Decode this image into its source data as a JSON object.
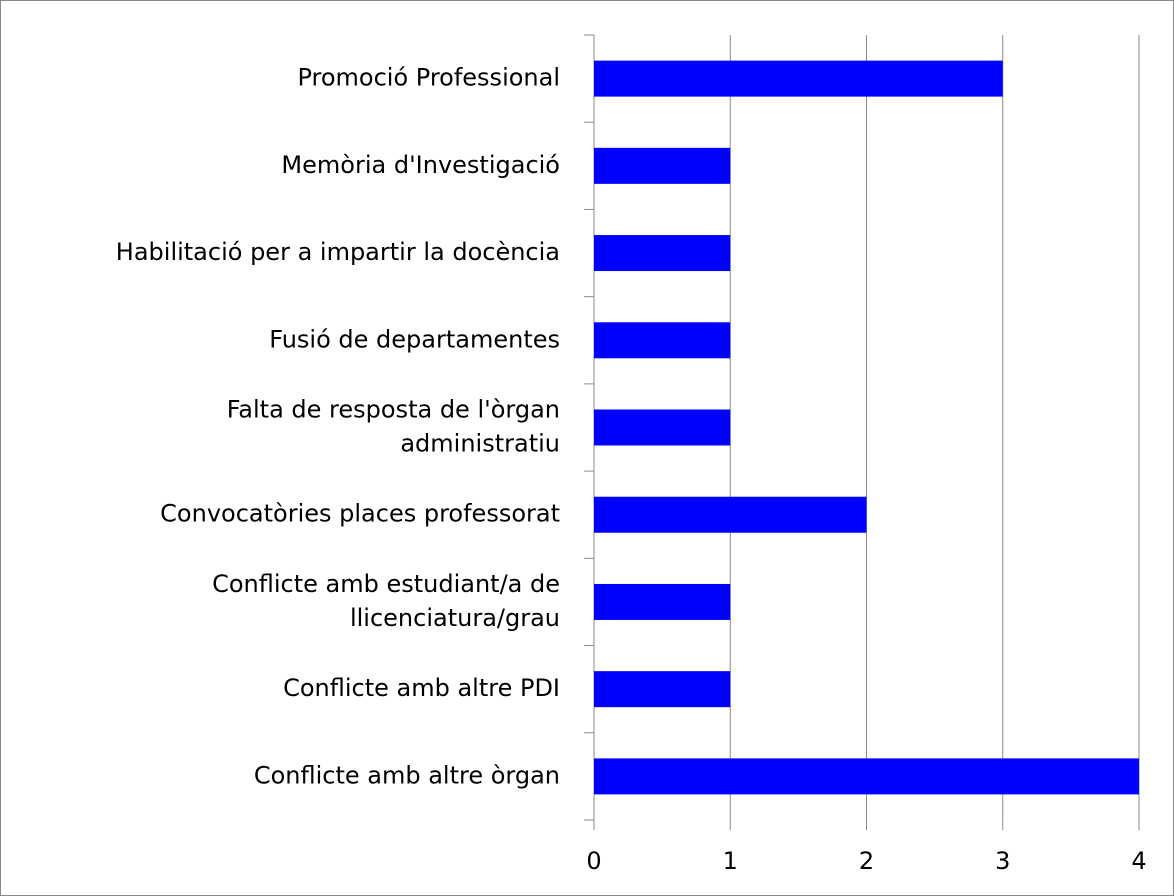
{
  "chart_data": {
    "type": "barh",
    "categories": [
      "Promoció Professional",
      "Memòria d'Investigació",
      "Habilitació per a impartir la docència",
      "Fusió de departamentes",
      "Falta de resposta de l'òrgan administratiu",
      "Convocatòries places professorat",
      "Conflicte amb estudiant/a de llicenciatura/grau",
      "Conflicte amb altre PDI",
      "Conflicte amb altre òrgan"
    ],
    "values": [
      3,
      1,
      1,
      1,
      1,
      2,
      1,
      1,
      4
    ],
    "color": "#0000ff",
    "xlim": [
      0,
      4
    ],
    "xticks": [
      0,
      1,
      2,
      3,
      4
    ],
    "grid": true
  }
}
